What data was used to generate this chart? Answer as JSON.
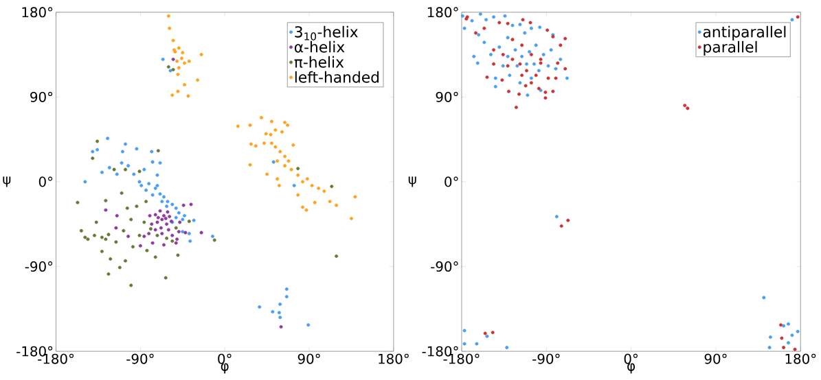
{
  "chart_data": [
    {
      "type": "scatter",
      "xlabel": "φ",
      "ylabel": "ψ",
      "xlim": [
        -180,
        180
      ],
      "ylim": [
        -180,
        180
      ],
      "xticks": [
        {
          "value": -180,
          "label": "-180°"
        },
        {
          "value": -90,
          "label": "-90°"
        },
        {
          "value": 0,
          "label": "0°"
        },
        {
          "value": 90,
          "label": "90°"
        },
        {
          "value": 180,
          "label": "180°"
        }
      ],
      "yticks": [
        {
          "value": -180,
          "label": "-180°"
        },
        {
          "value": -90,
          "label": "-90°"
        },
        {
          "value": 0,
          "label": "0°"
        },
        {
          "value": 90,
          "label": "90°"
        },
        {
          "value": 180,
          "label": "180°"
        }
      ],
      "grid": false,
      "legend": "top right",
      "marker": "circle",
      "series": [
        {
          "name": "3$_{10}$-helix",
          "color": "#4a9ff0",
          "x": [
            -149,
            -141,
            -136,
            -125,
            -131,
            -106,
            -109,
            -94,
            -123,
            -115,
            -110,
            -103,
            -97,
            -91,
            -86,
            -77,
            -72,
            -81,
            -74,
            -69,
            -65,
            -61,
            -56,
            -52,
            -62,
            -67,
            -77,
            -84,
            -89,
            -49,
            -45,
            -52,
            -56,
            -43,
            -38,
            -33,
            -37,
            -13,
            -45,
            -72,
            -78,
            -69,
            -66,
            -58,
            52,
            74,
            37,
            51,
            58,
            59,
            59,
            66,
            66,
            89
          ],
          "values": [
            0,
            32,
            34,
            46,
            10,
            40,
            32,
            35,
            15,
            8,
            20,
            17,
            8,
            0,
            13,
            21,
            7,
            -2,
            -7,
            -13,
            -16,
            -21,
            -24,
            -28,
            -26,
            -21,
            -14,
            -9,
            -4,
            -33,
            -40,
            -38,
            -43,
            -36,
            -55,
            -41,
            -63,
            -58,
            -53,
            -4,
            32,
            20,
            130,
            118,
            21,
            -4,
            -133,
            -138,
            -139,
            -144,
            -130,
            -122,
            -114,
            -152
          ]
        },
        {
          "name": "α-helix",
          "color": "#8e3a9e",
          "x": [
            -67,
            -62,
            -72,
            -65,
            -57,
            -68,
            -60,
            -74,
            -78,
            -49,
            -56,
            -67,
            -74,
            -81,
            -77,
            -90,
            -103,
            -115,
            -127,
            -116,
            -86,
            -65,
            -51,
            -44,
            -36,
            -42,
            -25,
            -61,
            -55,
            60,
            -71,
            -63,
            -59,
            -69,
            -80,
            -48,
            -52
          ],
          "values": [
            -40,
            -45,
            -43,
            -36,
            -42,
            -49,
            -51,
            -35,
            -45,
            -53,
            -57,
            -55,
            -51,
            -55,
            -65,
            -68,
            -58,
            -36,
            -30,
            -49,
            -58,
            -67,
            -61,
            -25,
            -24,
            -54,
            -54,
            -32,
            130,
            -154,
            -38,
            -39,
            -37,
            -31,
            -36,
            -43,
            -65
          ]
        },
        {
          "name": "π-helix",
          "color": "#667a33",
          "x": [
            -157,
            -153,
            -146,
            -136,
            -141,
            -127,
            -137,
            -131,
            -124,
            -116,
            -108,
            -131,
            -122,
            -112,
            -124,
            -100,
            -106,
            -98,
            -91,
            -83,
            -74,
            -63,
            -50,
            -94,
            -84,
            -110,
            -104,
            -100,
            -86,
            -79,
            -72,
            -62,
            -56,
            -71,
            -91,
            -106,
            -118,
            -52,
            -38,
            -11,
            -60,
            -55,
            114,
            119,
            78,
            -127,
            -139,
            -149
          ],
          "values": [
            -22,
            -52,
            -61,
            43,
            25,
            -20,
            -43,
            -59,
            -56,
            -64,
            -52,
            -74,
            -82,
            -91,
            -98,
            -110,
            -84,
            -69,
            -57,
            -73,
            -80,
            -102,
            -78,
            -26,
            -21,
            -12,
            -28,
            -40,
            -43,
            -50,
            -57,
            -60,
            -63,
            33,
            11,
            13,
            13,
            -49,
            -42,
            -62,
            122,
            119,
            -5,
            -79,
            14,
            -61,
            -57,
            -59
          ]
        },
        {
          "name": "left-handed",
          "color": "#ffa21f",
          "x": [
            -60,
            -59,
            -55,
            -53,
            -49,
            -45,
            -51,
            -49,
            -43,
            -38,
            -50,
            -29,
            -43,
            -50,
            -56,
            -39,
            -25,
            -54,
            -46,
            14,
            27,
            39,
            50,
            64,
            67,
            28,
            33,
            27,
            44,
            49,
            54,
            61,
            50,
            54,
            59,
            64,
            68,
            73,
            56,
            64,
            71,
            78,
            83,
            88,
            93,
            100,
            106,
            112,
            119,
            87,
            83,
            96,
            135,
            139,
            58,
            56,
            45,
            42,
            78
          ],
          "values": [
            176,
            163,
            150,
            138,
            142,
            137,
            128,
            121,
            126,
            128,
            114,
            108,
            103,
            96,
            92,
            91,
            135,
            140,
            131,
            59,
            60,
            68,
            64,
            63,
            60,
            40,
            38,
            18,
            51,
            50,
            55,
            53,
            41,
            37,
            32,
            27,
            22,
            39,
            22,
            17,
            13,
            7,
            0,
            3,
            -4,
            -7,
            -10,
            -21,
            -25,
            -30,
            -27,
            -22,
            -39,
            -16,
            -4,
            3,
            8,
            41,
            -14
          ]
        }
      ]
    },
    {
      "type": "scatter",
      "xlabel": "φ",
      "ylabel": "ψ",
      "xlim": [
        -180,
        180
      ],
      "ylim": [
        -180,
        180
      ],
      "xticks": [
        {
          "value": -180,
          "label": "-180°"
        },
        {
          "value": -90,
          "label": "-90°"
        },
        {
          "value": 0,
          "label": "0°"
        },
        {
          "value": 90,
          "label": "90°"
        },
        {
          "value": 180,
          "label": "180°"
        }
      ],
      "yticks": [
        {
          "value": -180,
          "label": "-180°"
        },
        {
          "value": -90,
          "label": "-90°"
        },
        {
          "value": 0,
          "label": "0°"
        },
        {
          "value": 90,
          "label": "90°"
        },
        {
          "value": 180,
          "label": "180°"
        }
      ],
      "grid": false,
      "legend": "top right",
      "marker": "circle",
      "series": [
        {
          "name": "antiparallel",
          "color": "#4a9ff0",
          "x": [
            -179,
            -177,
            -169,
            -160,
            -154,
            -146,
            -134,
            -162,
            -167,
            -163,
            -156,
            -149,
            -144,
            -140,
            -131,
            -126,
            -118,
            -113,
            -106,
            -97,
            -131,
            -123,
            -116,
            -108,
            -101,
            -93,
            -85,
            -83,
            -75,
            -68,
            -80,
            -88,
            -98,
            -106,
            -110,
            -118,
            -129,
            -136,
            -121,
            -111,
            -103,
            -96,
            -144,
            -79,
            -177,
            -153,
            -177,
            -164,
            -132,
            141,
            148,
            162,
            167,
            171,
            167,
            177,
            147,
            171
          ],
          "values": [
            176,
            163,
            171,
            178,
            172,
            175,
            176,
            156,
            133,
            126,
            148,
            135,
            110,
            143,
            153,
            166,
            167,
            158,
            163,
            164,
            133,
            140,
            133,
            138,
            145,
            135,
            140,
            156,
            130,
            110,
            120,
            123,
            118,
            110,
            92,
            105,
            113,
            123,
            123,
            125,
            125,
            97,
            101,
            -37,
            -158,
            -164,
            -172,
            -172,
            -176,
            -123,
            -165,
            -153,
            -151,
            -163,
            -171,
            -159,
            -176,
            172
          ]
        },
        {
          "name": "parallel",
          "color": "#cc3333",
          "x": [
            -175,
            -174,
            -165,
            -156,
            -153,
            -146,
            -140,
            -131,
            -115,
            -107,
            -89,
            -83,
            -75,
            -70,
            -70,
            -78,
            -91,
            -83,
            -91,
            -98,
            -106,
            -112,
            -119,
            -122,
            -130,
            -137,
            -146,
            -136,
            -126,
            -118,
            -111,
            -101,
            -96,
            -106,
            -116,
            -126,
            -131,
            -88,
            -80,
            57,
            60,
            -67,
            -74,
            -155,
            -147,
            159,
            160,
            162,
            174,
            177,
            -96,
            -116
          ],
          "values": [
            173,
            175,
            158,
            163,
            111,
            125,
            169,
            168,
            172,
            169,
            161,
            154,
            145,
            152,
            120,
            126,
            95,
            96,
            89,
            99,
            105,
            102,
            93,
            79,
            96,
            108,
            140,
            135,
            130,
            125,
            118,
            113,
            130,
            135,
            145,
            151,
            123,
            110,
            110,
            81,
            78,
            -41,
            -47,
            -161,
            -160,
            -152,
            -166,
            -176,
            -178,
            175,
            126,
            113
          ]
        }
      ]
    }
  ]
}
